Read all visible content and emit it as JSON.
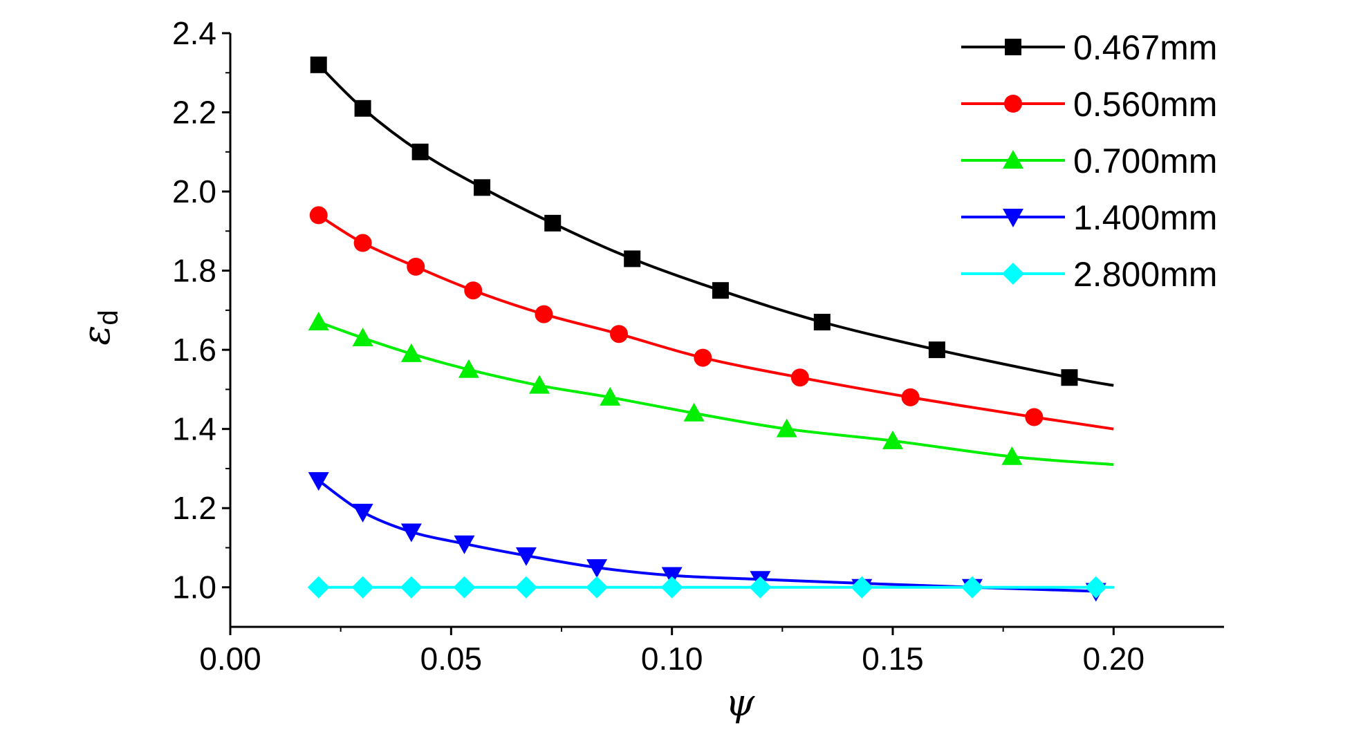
{
  "chart_data": {
    "type": "line",
    "xlabel": "ψ",
    "ylabel": "ε",
    "ylabel_subscript": "d",
    "xlim": [
      0.0,
      0.225
    ],
    "ylim": [
      0.9,
      2.4
    ],
    "x_ticks": [
      0.0,
      0.05,
      0.1,
      0.15,
      0.2
    ],
    "x_tick_labels": [
      "0.00",
      "0.05",
      "0.10",
      "0.15",
      "0.20"
    ],
    "y_ticks": [
      1.0,
      1.2,
      1.4,
      1.6,
      1.8,
      2.0,
      2.2,
      2.4
    ],
    "y_tick_labels": [
      "1.0",
      "1.2",
      "1.4",
      "1.6",
      "1.8",
      "2.0",
      "2.2",
      "2.4"
    ],
    "grid": false,
    "legend_position": "top-right",
    "series": [
      {
        "name": "0.467mm",
        "color": "#000000",
        "marker": "square",
        "x": [
          0.02,
          0.03,
          0.043,
          0.057,
          0.073,
          0.091,
          0.111,
          0.134,
          0.16,
          0.19
        ],
        "y": [
          2.32,
          2.21,
          2.1,
          2.01,
          1.92,
          1.83,
          1.75,
          1.67,
          1.6,
          1.53
        ],
        "curve_x": [
          0.02,
          0.03,
          0.043,
          0.057,
          0.073,
          0.091,
          0.111,
          0.134,
          0.16,
          0.19,
          0.2
        ],
        "curve_y": [
          2.32,
          2.21,
          2.1,
          2.01,
          1.92,
          1.83,
          1.75,
          1.67,
          1.6,
          1.53,
          1.51
        ]
      },
      {
        "name": "0.560mm",
        "color": "#ff0000",
        "marker": "circle",
        "x": [
          0.02,
          0.03,
          0.042,
          0.055,
          0.071,
          0.088,
          0.107,
          0.129,
          0.154,
          0.182
        ],
        "y": [
          1.94,
          1.87,
          1.81,
          1.75,
          1.69,
          1.64,
          1.58,
          1.53,
          1.48,
          1.43
        ],
        "curve_x": [
          0.02,
          0.03,
          0.042,
          0.055,
          0.071,
          0.088,
          0.107,
          0.129,
          0.154,
          0.182,
          0.2
        ],
        "curve_y": [
          1.94,
          1.87,
          1.81,
          1.75,
          1.69,
          1.64,
          1.58,
          1.53,
          1.48,
          1.43,
          1.4
        ]
      },
      {
        "name": "0.700mm",
        "color": "#00ee00",
        "marker": "triangle-up",
        "x": [
          0.02,
          0.03,
          0.041,
          0.054,
          0.07,
          0.086,
          0.105,
          0.126,
          0.15,
          0.177
        ],
        "y": [
          1.67,
          1.63,
          1.59,
          1.55,
          1.51,
          1.48,
          1.44,
          1.4,
          1.37,
          1.33
        ],
        "curve_x": [
          0.02,
          0.03,
          0.041,
          0.054,
          0.07,
          0.086,
          0.105,
          0.126,
          0.15,
          0.177,
          0.2
        ],
        "curve_y": [
          1.67,
          1.63,
          1.59,
          1.55,
          1.51,
          1.48,
          1.44,
          1.4,
          1.37,
          1.33,
          1.31
        ]
      },
      {
        "name": "1.400mm",
        "color": "#0000ff",
        "marker": "triangle-down",
        "x": [
          0.02,
          0.03,
          0.041,
          0.053,
          0.067,
          0.083,
          0.1,
          0.12,
          0.143,
          0.168,
          0.196
        ],
        "y": [
          1.27,
          1.19,
          1.14,
          1.11,
          1.08,
          1.05,
          1.03,
          1.02,
          1.0,
          1.0,
          0.99
        ],
        "curve_x": [
          0.02,
          0.03,
          0.041,
          0.053,
          0.067,
          0.083,
          0.1,
          0.12,
          0.143,
          0.168,
          0.196
        ],
        "curve_y": [
          1.27,
          1.19,
          1.14,
          1.11,
          1.08,
          1.05,
          1.03,
          1.02,
          1.01,
          1.0,
          0.99
        ]
      },
      {
        "name": "2.800mm",
        "color": "#00ffff",
        "marker": "diamond",
        "x": [
          0.02,
          0.03,
          0.041,
          0.053,
          0.067,
          0.083,
          0.1,
          0.12,
          0.143,
          0.168,
          0.196
        ],
        "y": [
          1.0,
          1.0,
          1.0,
          1.0,
          1.0,
          1.0,
          1.0,
          1.0,
          1.0,
          1.0,
          1.0
        ],
        "curve_x": [
          0.02,
          0.03,
          0.041,
          0.053,
          0.067,
          0.083,
          0.1,
          0.12,
          0.143,
          0.168,
          0.196,
          0.2
        ],
        "curve_y": [
          1.0,
          1.0,
          1.0,
          1.0,
          1.0,
          1.0,
          1.0,
          1.0,
          1.0,
          1.0,
          1.0,
          1.0
        ]
      }
    ]
  }
}
